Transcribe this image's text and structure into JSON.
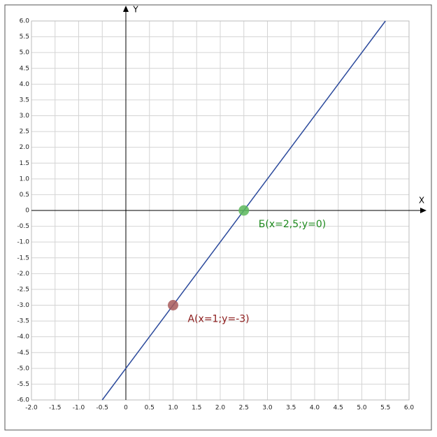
{
  "chart_data": {
    "type": "line",
    "xlabel": "X",
    "ylabel": "Y",
    "xlim": [
      -2,
      6
    ],
    "ylim": [
      -6,
      6
    ],
    "grid": true,
    "xticks": [
      {
        "value": -2,
        "label": "-2.0"
      },
      -1.5,
      {
        "value": -1,
        "label": "-1.0"
      },
      -0.5,
      0,
      0.5,
      {
        "value": 1,
        "label": "1.0"
      },
      1.5,
      {
        "value": 2,
        "label": "2.0"
      },
      2.5,
      {
        "value": 3,
        "label": "3.0"
      },
      3.5,
      {
        "value": 4,
        "label": "4.0"
      },
      4.5,
      {
        "value": 5,
        "label": "5.0"
      },
      5.5,
      {
        "value": 6,
        "label": "6.0"
      }
    ],
    "yticks": [
      {
        "value": 6,
        "label": "6.0"
      },
      5.5,
      {
        "value": 5,
        "label": "5.0"
      },
      4.5,
      {
        "value": 4,
        "label": "4.0"
      },
      3.5,
      {
        "value": 3,
        "label": "3.0"
      },
      2.5,
      {
        "value": 2,
        "label": "2.0"
      },
      1.5,
      {
        "value": 1,
        "label": "1.0"
      },
      0.5,
      0,
      -0.5,
      {
        "value": -1,
        "label": "-1.0"
      },
      -1.5,
      {
        "value": -2,
        "label": "-2.0"
      },
      -2.5,
      {
        "value": -3,
        "label": "-3.0"
      },
      -3.5,
      {
        "value": -4,
        "label": "-4.0"
      },
      -4.5,
      {
        "value": -5,
        "label": "-5.0"
      },
      -5.5,
      {
        "value": -6,
        "label": "-6.0"
      }
    ],
    "series": [
      {
        "color": "#2c4a9c",
        "x": [
          -0.5,
          5.5
        ],
        "values": [
          -6,
          6
        ]
      }
    ],
    "points": [
      {
        "label": "А(x=1;y=-3)",
        "x": 1,
        "y": -3,
        "color": "#a85a5a",
        "label_color": "#8b1a1a"
      },
      {
        "label": "Б(x=2,5;y=0)",
        "x": 2.5,
        "y": 0,
        "color": "#5cb85c",
        "label_color": "#1e8a1e"
      }
    ]
  }
}
